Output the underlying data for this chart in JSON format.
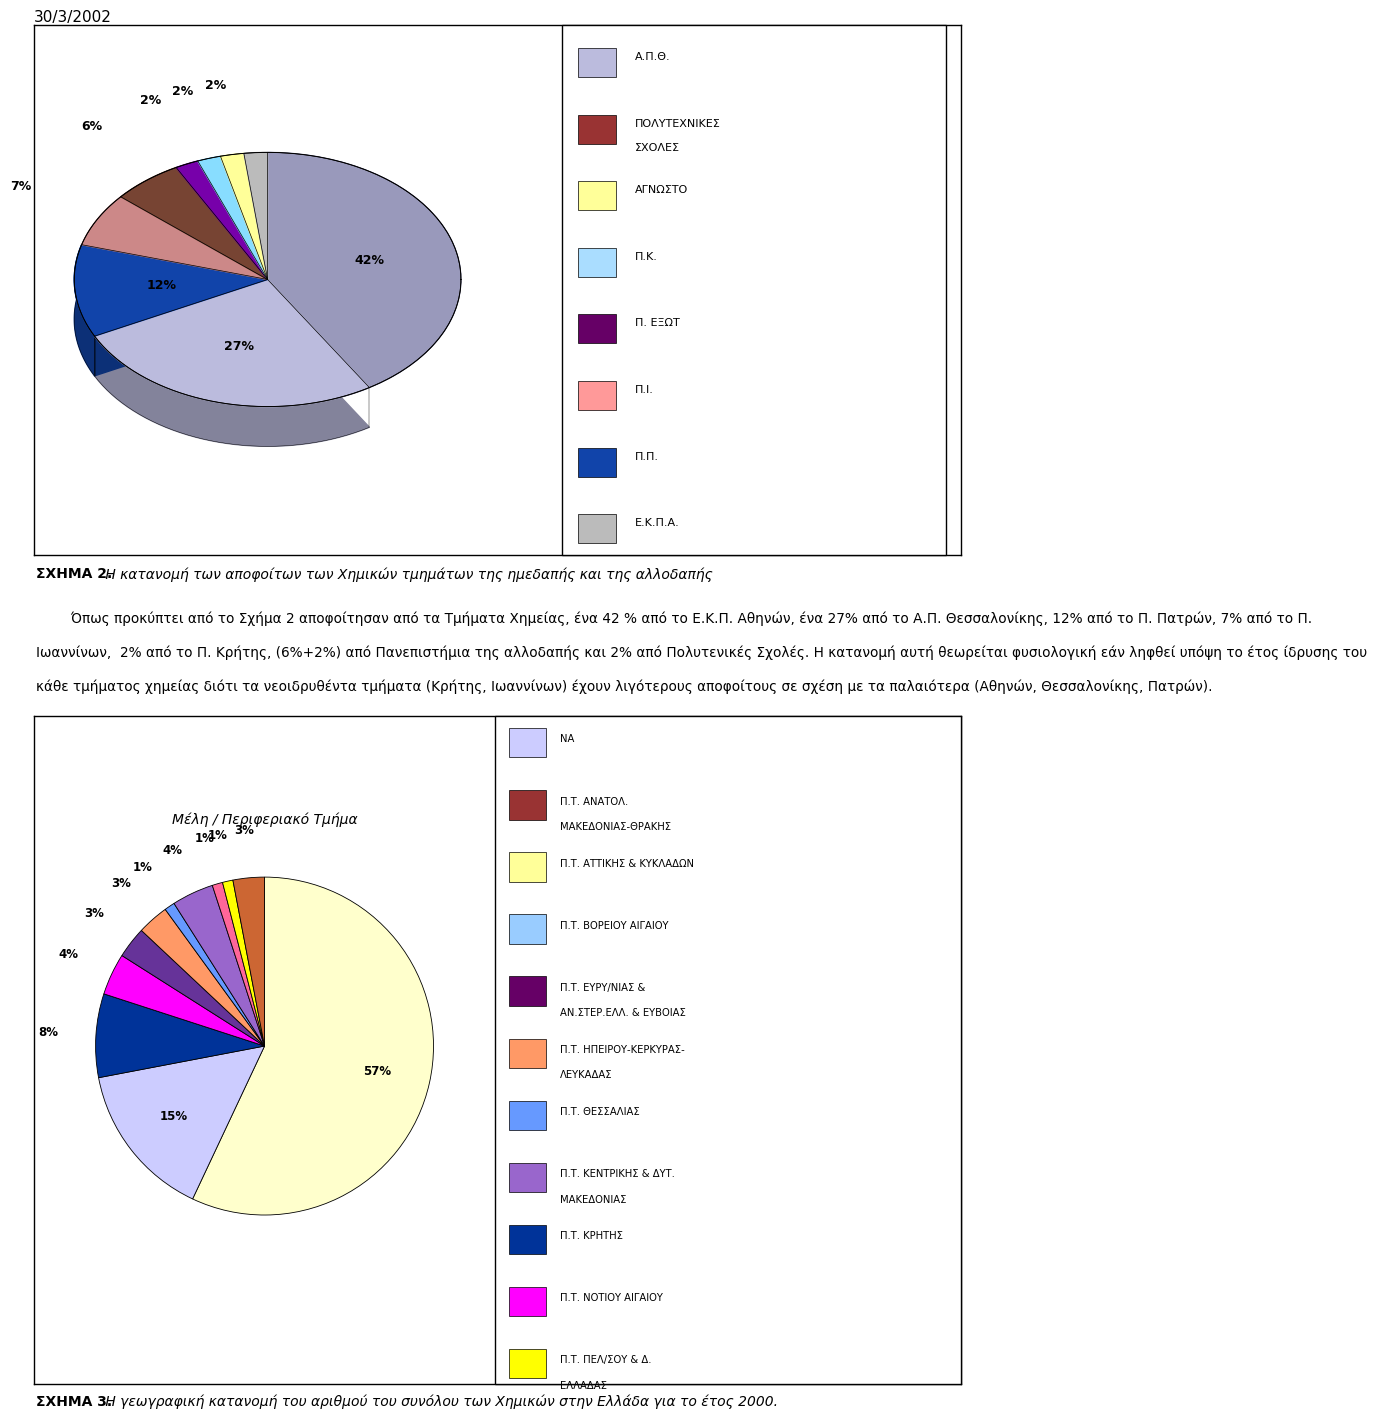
{
  "date_text": "30/3/2002",
  "chart1": {
    "values": [
      42,
      27,
      12,
      7,
      6,
      2,
      2,
      2,
      2
    ],
    "pct_labels": [
      "42%",
      "27%",
      "12%",
      "7%",
      "6%",
      "2%",
      "2%",
      "2%",
      ""
    ],
    "colors": [
      "#9999BB",
      "#BBBBDD",
      "#1144AA",
      "#CC8888",
      "#774433",
      "#7700AA",
      "#88DDFF",
      "#FFFF99",
      "#BBBBBB"
    ],
    "legend_labels": [
      "Α.Π.Θ.",
      "ΠΟΛΥΤΕΧΝΙΚΕΣ\nΣΧΟΛΕΣ",
      "ΑΓΝΩΣΤΟ",
      "Π.Κ.",
      "Π. ΕΞΩΤ",
      "Π.Ι.",
      "Π.Π.",
      "Ε.Κ.Π.Α."
    ],
    "legend_colors": [
      "#BBBBDD",
      "#993333",
      "#FFFF99",
      "#AADDFF",
      "#660066",
      "#FF9999",
      "#1144AA",
      "#BBBBBB"
    ]
  },
  "caption1_bold": "ΣΧΗΜΑ 2.",
  "caption1_italic": " Η κατανομή των αποφοίτων των Χημικών τμημάτων της ημεδαπής και της αλλοδαπής",
  "para_lines": [
    "        Όπως προκύπτει από το Σχήμα 2 αποφοίτησαν από τα Τμήματα Χημείας, ένα 42 % από το Ε.Κ.Π. Αθηνών, ένα 27% από το Α.Π. Θεσσαλονίκης, 12% από το Π. Πατρών, 7% από το Π.",
    "Ιωαννίνων,  2% από το Π. Κρήτης, (6%+2%) από Πανεπιστήμια της αλλοδαπής και 2% από Πολυτενικές Σχολές. Η κατανομή αυτή θεωρείται φυσιολογική εάν ληφθεί υπόψη το έτος ίδρυσης του",
    "κάθε τμήματος χημείας διότι τα νεοιδρυθέντα τμήματα (Κρήτης, Ιωαννίνων) έχουν λιγότερους αποφοίτους σε σχέση με τα παλαιότερα (Αθηνών, Θεσσαλονίκης, Πατρών)."
  ],
  "chart2": {
    "title": "Μέλη / Περιφεριακό Τμήμα",
    "values": [
      57,
      15,
      8,
      4,
      3,
      3,
      1,
      4,
      1,
      1,
      3
    ],
    "pct_labels": [
      "57%",
      "15%",
      "8%",
      "4%",
      "3%",
      "3%",
      "1%",
      "4%",
      "1%",
      "1%",
      "3%"
    ],
    "colors": [
      "#FFFFCC",
      "#CCCCFF",
      "#003399",
      "#FF00FF",
      "#663399",
      "#FF9966",
      "#6699FF",
      "#9966CC",
      "#FF6699",
      "#FFFF00",
      "#CC6633"
    ],
    "legend_labels": [
      "ΝΑ",
      "Π.Τ. ΑΝΑΤΟΛ.\nΜΑΚΕΔΟΝΙΑΣ-ΘΡΑΚΗΣ",
      "Π.Τ. ΑΤΤΙΚΗΣ & ΚΥΚΛΑΔΩΝ",
      "Π.Τ. ΒΟΡΕΙΟΥ ΑΙΓΑΙΟΥ",
      "Π.Τ. ΕΥΡΥ/ΝΙΑΣ &\nΑΝ.ΣΤΕΡ.ΕΛΛ. & ΕΥΒΟΙΑΣ",
      "Π.Τ. ΗΠΕΙΡΟΥ-ΚΕΡΚΥΡΑΣ-\nΛΕΥΚΑΔΑΣ",
      "Π.Τ. ΘΕΣΣΑΛΙΑΣ",
      "Π.Τ. ΚΕΝΤΡΙΚΗΣ & ΔΥΤ.\nΜΑΚΕΔΟΝΙΑΣ",
      "Π.Τ. ΚΡΗΤΗΣ",
      "Π.Τ. ΝΟΤΙΟΥ ΑΙΓΑΙΟΥ",
      "Π.Τ. ΠΕΛ/ΣΟΥ & Δ.\nΕΛΛΑΔΑΣ"
    ],
    "legend_colors": [
      "#CCCCFF",
      "#993333",
      "#FFFF99",
      "#99CCFF",
      "#660066",
      "#FF9966",
      "#6699FF",
      "#9966CC",
      "#003399",
      "#FF00FF",
      "#FFFF00"
    ]
  },
  "caption2_bold": "ΣΧΗΜΑ 3.",
  "caption2_italic": " Η γεωγραφική κατανομή του αριθμού του συνόλου των Χημικών στην Ελλάδα για το έτος 2000."
}
